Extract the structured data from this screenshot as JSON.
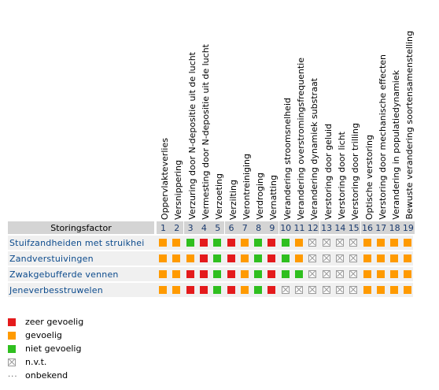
{
  "table": {
    "header_label": "Storingsfactor",
    "factors": [
      {
        "num": "1",
        "label": "Oppervlakteverlies"
      },
      {
        "num": "2",
        "label": "Versnippering"
      },
      {
        "num": "3",
        "label": "Verzuring door N-depositie uit de lucht"
      },
      {
        "num": "4",
        "label": "Vermesting door N-depositie uit de lucht"
      },
      {
        "num": "5",
        "label": "Verzoeting"
      },
      {
        "num": "6",
        "label": "Verzilting"
      },
      {
        "num": "7",
        "label": "Verontreiniging"
      },
      {
        "num": "8",
        "label": "Verdroging"
      },
      {
        "num": "9",
        "label": "Vernatting"
      },
      {
        "num": "10",
        "label": "Verandering stroomsnelheid"
      },
      {
        "num": "11",
        "label": "Verandering overstromingsfrequentie"
      },
      {
        "num": "12",
        "label": "Verandering dynamiek substraat"
      },
      {
        "num": "13",
        "label": "Verstoring door geluid"
      },
      {
        "num": "14",
        "label": "Verstoring door licht"
      },
      {
        "num": "15",
        "label": "Verstoring door trilling"
      },
      {
        "num": "16",
        "label": "Optische verstoring"
      },
      {
        "num": "17",
        "label": "Verstoring door mechanische effecten"
      },
      {
        "num": "18",
        "label": "Verandering in populatiedynamiek"
      },
      {
        "num": "19",
        "label": "Bewuste verandering soortensamenstelling"
      }
    ],
    "rows": [
      {
        "label": "Stuifzandheiden met struikhei",
        "cells": [
          "orange",
          "orange",
          "green",
          "red",
          "green",
          "red",
          "orange",
          "green",
          "red",
          "green",
          "orange",
          "na",
          "na",
          "na",
          "na",
          "orange",
          "orange",
          "orange",
          "orange"
        ]
      },
      {
        "label": "Zandverstuivingen",
        "cells": [
          "orange",
          "orange",
          "orange",
          "red",
          "green",
          "red",
          "orange",
          "green",
          "red",
          "green",
          "orange",
          "na",
          "na",
          "na",
          "na",
          "orange",
          "orange",
          "orange",
          "orange"
        ]
      },
      {
        "label": "Zwakgebufferde vennen",
        "cells": [
          "orange",
          "orange",
          "red",
          "red",
          "green",
          "red",
          "orange",
          "green",
          "red",
          "green",
          "green",
          "na",
          "na",
          "na",
          "na",
          "orange",
          "orange",
          "orange",
          "orange"
        ]
      },
      {
        "label": "Jeneverbesstruwelen",
        "cells": [
          "orange",
          "orange",
          "red",
          "red",
          "green",
          "red",
          "orange",
          "green",
          "red",
          "na",
          "na",
          "na",
          "na",
          "na",
          "na",
          "orange",
          "orange",
          "orange",
          "orange"
        ]
      }
    ]
  },
  "colors": {
    "red": "#e41a1c",
    "orange": "#ff9a00",
    "green": "#2fbf1f",
    "na": "#ffffff"
  },
  "legend": [
    {
      "key": "red",
      "label": "zeer gevoelig"
    },
    {
      "key": "orange",
      "label": "gevoelig"
    },
    {
      "key": "green",
      "label": "niet gevoelig"
    },
    {
      "key": "na",
      "label": "n.v.t."
    },
    {
      "key": "unknown",
      "symbol": "...",
      "label": "onbekend"
    }
  ]
}
